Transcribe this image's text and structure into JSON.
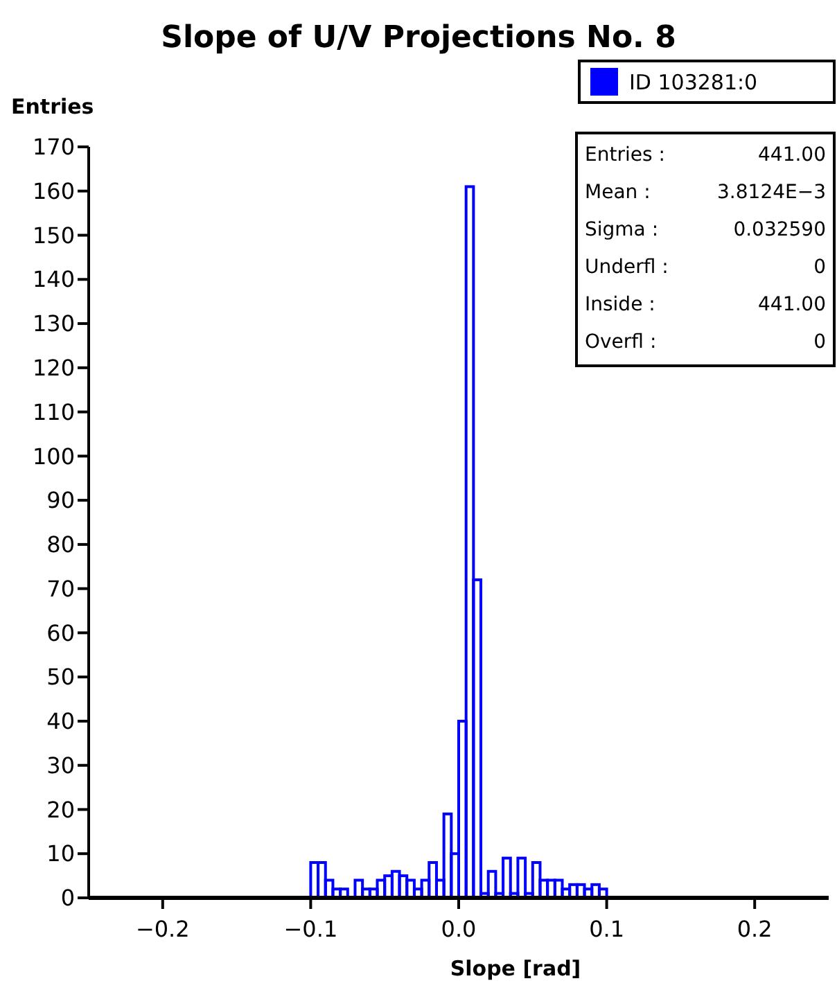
{
  "chart_data": {
    "type": "histogram",
    "title": "Slope of U/V Projections No. 8",
    "xlabel": "Slope [rad]",
    "ylabel": "Entries",
    "bins": [
      -0.1,
      -0.095,
      -0.09,
      -0.085,
      -0.08,
      -0.075,
      -0.07,
      -0.065,
      -0.06,
      -0.055,
      -0.05,
      -0.045,
      -0.04,
      -0.035,
      -0.03,
      -0.025,
      -0.02,
      -0.015,
      -0.01,
      -0.005,
      0,
      0.005,
      0.01,
      0.015,
      0.02,
      0.025,
      0.03,
      0.035,
      0.04,
      0.045,
      0.05,
      0.055,
      0.06,
      0.065,
      0.07,
      0.075,
      0.08,
      0.085,
      0.09,
      0.095,
      0.1
    ],
    "series": [
      {
        "name": "ID 103281:0",
        "color": "#0000ff",
        "values": [
          8,
          8,
          4,
          2,
          2,
          0,
          4,
          2,
          2,
          4,
          5,
          6,
          5,
          4,
          2,
          4,
          8,
          4,
          19,
          10,
          40,
          161,
          72,
          1,
          6,
          1,
          9,
          1,
          9,
          1,
          8,
          4,
          4,
          4,
          2,
          3,
          3,
          2,
          3,
          2
        ]
      }
    ],
    "xlim": [
      -0.25,
      0.25
    ],
    "xticks": [
      {
        "value": -0.2,
        "label": "−0.2"
      },
      {
        "value": -0.1,
        "label": "−0.1"
      },
      {
        "value": 0,
        "label": "0.0"
      },
      0.1,
      0.2
    ],
    "ylim": [
      0,
      170
    ],
    "yticks": [
      0,
      10,
      20,
      30,
      40,
      50,
      60,
      70,
      80,
      90,
      100,
      110,
      120,
      130,
      140,
      150,
      160,
      170
    ],
    "legend": "top right",
    "grid": false,
    "annotations": [
      "Entries : 441.00",
      "Mean : 3.8124E−3",
      "Sigma : 0.032590",
      "Underfl : 0",
      "Inside : 441.00",
      "Overfl : 0"
    ]
  }
}
